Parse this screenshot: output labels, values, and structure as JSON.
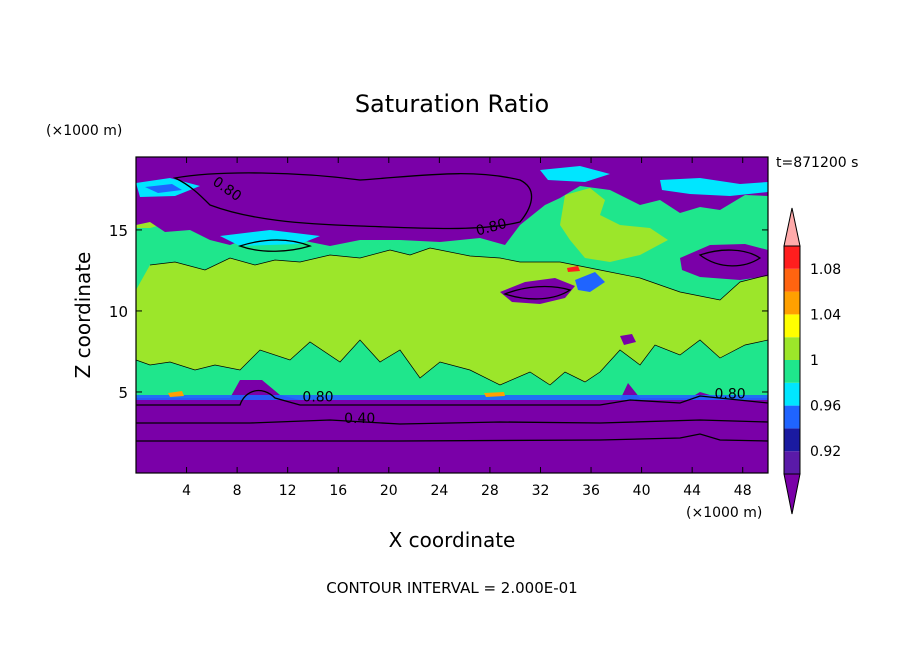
{
  "chart_data": {
    "type": "contour",
    "title": "Saturation Ratio",
    "xlabel": "X coordinate",
    "ylabel": "Z coordinate",
    "x_unit": "(×1000 m)",
    "y_unit": "(×1000 m)",
    "time_label": "t=871200 s",
    "footer": "CONTOUR INTERVAL = 2.000E-01",
    "xlim": [
      0,
      50
    ],
    "ylim": [
      0,
      19.5
    ],
    "x_ticks": [
      4,
      8,
      12,
      16,
      20,
      24,
      28,
      32,
      36,
      40,
      44,
      48
    ],
    "y_ticks": [
      5,
      10,
      15
    ],
    "contour_labels": [
      {
        "text": "0.80",
        "x": 7,
        "y": 17.3,
        "rotate": 35
      },
      {
        "text": "0.80",
        "x": 28.2,
        "y": 14.9,
        "rotate": -15
      },
      {
        "text": "0.80",
        "x": 14.4,
        "y": 4.4,
        "rotate": 0
      },
      {
        "text": "0.40",
        "x": 17.7,
        "y": 3.1,
        "rotate": 0
      },
      {
        "text": "0.80",
        "x": 47,
        "y": 4.6,
        "rotate": 0
      }
    ],
    "colorbar": {
      "labels": [
        "1.08",
        "1.04",
        "1",
        "0.96",
        "0.92"
      ],
      "label_values": [
        1.08,
        1.04,
        1.0,
        0.96,
        0.92
      ],
      "min": 0.9,
      "max": 1.1,
      "bands": [
        {
          "from": 0.9,
          "to": 0.92,
          "color": "#5a1aa8"
        },
        {
          "from": 0.92,
          "to": 0.94,
          "color": "#1a1aa0"
        },
        {
          "from": 0.94,
          "to": 0.96,
          "color": "#1f64ff"
        },
        {
          "from": 0.96,
          "to": 0.98,
          "color": "#00e6ff"
        },
        {
          "from": 0.98,
          "to": 1.0,
          "color": "#1fe68c"
        },
        {
          "from": 1.0,
          "to": 1.02,
          "color": "#9ce62a"
        },
        {
          "from": 1.02,
          "to": 1.04,
          "color": "#ffff00"
        },
        {
          "from": 1.04,
          "to": 1.06,
          "color": "#ffa000"
        },
        {
          "from": 1.06,
          "to": 1.08,
          "color": "#ff6410"
        },
        {
          "from": 1.08,
          "to": 1.1,
          "color": "#ff1e1e"
        }
      ],
      "over_color": "#ffaaaa",
      "under_color": "#7a00a8"
    },
    "colors": {
      "dry": "#7a00a8",
      "near_saturation": "#1fe68c",
      "supersaturated": "#9ce62a",
      "cyan": "#00e6ff",
      "blue": "#1f64ff"
    }
  }
}
